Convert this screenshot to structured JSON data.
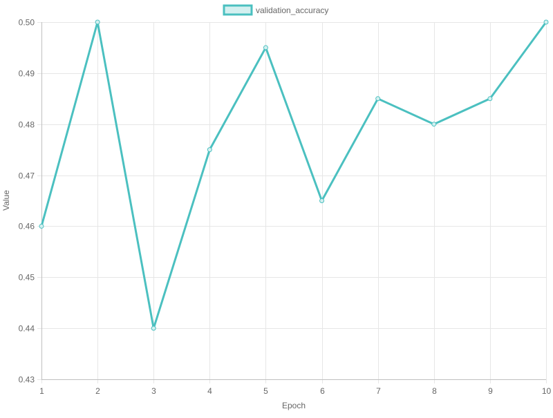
{
  "chart_data": {
    "type": "line",
    "x": [
      1,
      2,
      3,
      4,
      5,
      6,
      7,
      8,
      9,
      10
    ],
    "series": [
      {
        "name": "validation_accuracy",
        "values": [
          0.46,
          0.5,
          0.44,
          0.475,
          0.495,
          0.465,
          0.485,
          0.48,
          0.485,
          0.5
        ],
        "color": "#4bc0c0",
        "fill_color": "#d4f0f0"
      }
    ],
    "xlabel": "Epoch",
    "ylabel": "Value",
    "xlim": [
      1,
      10
    ],
    "ylim": [
      0.43,
      0.5
    ],
    "y_ticks": [
      "0.43",
      "0.44",
      "0.45",
      "0.46",
      "0.47",
      "0.48",
      "0.49",
      "0.50"
    ],
    "x_ticks": [
      "1",
      "2",
      "3",
      "4",
      "5",
      "6",
      "7",
      "8",
      "9",
      "10"
    ],
    "grid": true,
    "legend_position": "top-center"
  }
}
